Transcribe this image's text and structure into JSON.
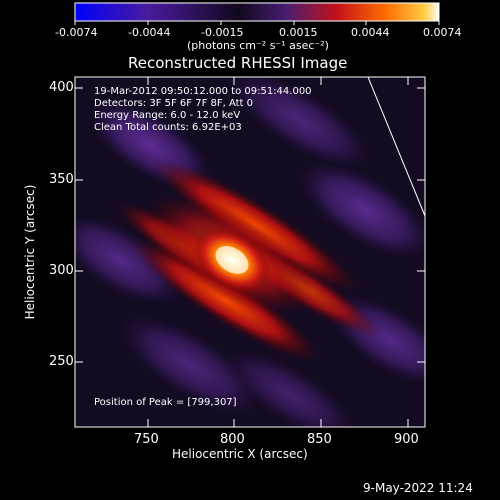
{
  "colorbar": {
    "tick_labels": [
      "-0.0074",
      "-0.0044",
      "-0.0015",
      "0.0015",
      "0.0044",
      "0.0074"
    ],
    "units": "(photons cm⁻² s⁻¹ asec⁻²)"
  },
  "plot": {
    "title": "Reconstructed RHESSI Image",
    "xlabel": "Heliocentric X (arcsec)",
    "ylabel": "Heliocentric Y (arcsec)",
    "x_ticks": [
      "750",
      "800",
      "850",
      "900"
    ],
    "y_ticks": [
      "400",
      "350",
      "300",
      "250"
    ],
    "info_lines": [
      "19-Mar-2012 09:50:12.000 to 09:51:44.000",
      "Detectors: 3F 5F 6F 7F 8F, Att 0",
      "Energy Range: 6.0 - 12.0 keV",
      "Clean     Total counts: 6.92E+03"
    ],
    "peak_position": "Position of Peak = [799,307]"
  },
  "footer": {
    "timestamp": "9-May-2022 11:24"
  },
  "colors": {
    "background": "#000000",
    "colormap": [
      "#0000ff",
      "#2a1a8a",
      "#120c2a",
      "#3b1f5a",
      "#a01010",
      "#ff4b00",
      "#ffb000",
      "#ffffff"
    ]
  }
}
